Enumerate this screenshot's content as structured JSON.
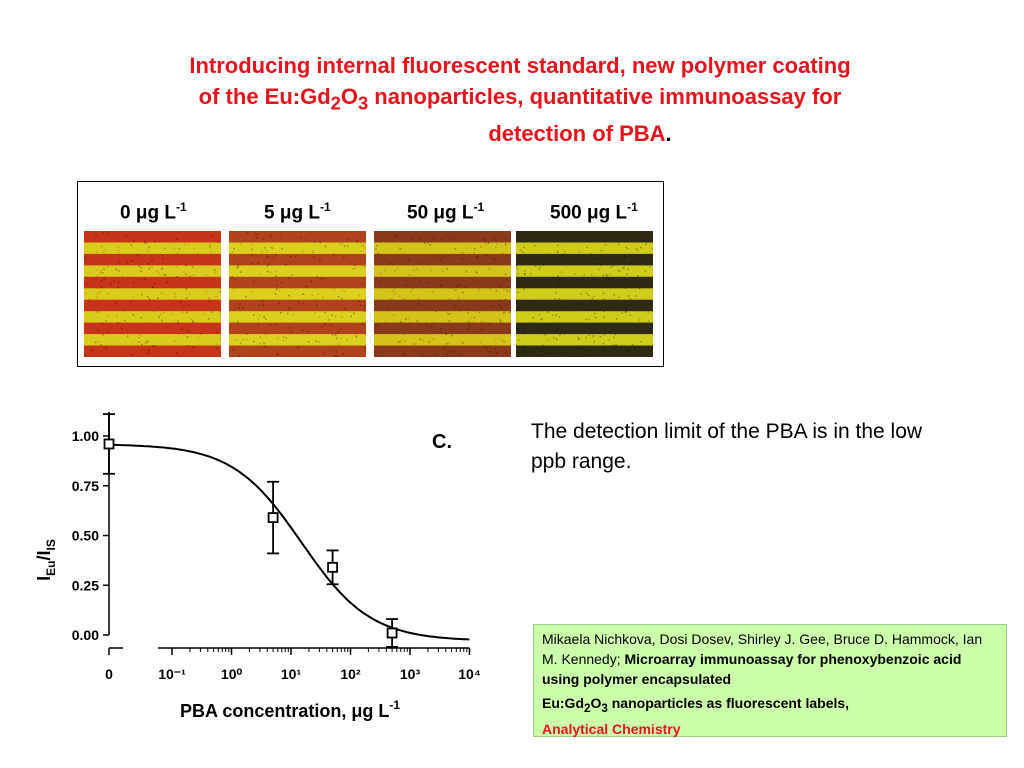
{
  "title": {
    "line1": "Introducing internal fluorescent standard, new polymer coating",
    "line2_pre": "of the Eu:Gd",
    "line2_sub1": "2",
    "line2_mid": "O",
    "line2_sub2": "3",
    "line2_post": " nanoparticles, quantitative immunoassay for",
    "line3": "detection of PBA",
    "line3_end": "."
  },
  "panels": [
    {
      "value": "0",
      "unit": "μg L",
      "exp": "-1",
      "band_color": "#c8341a",
      "bg_color": "#d9cc1c"
    },
    {
      "value": "5",
      "unit": "μg L",
      "exp": "-1",
      "band_color": "#b0421c",
      "bg_color": "#dcd01e"
    },
    {
      "value": "50",
      "unit": "μg L",
      "exp": "-1",
      "band_color": "#8a3a1a",
      "bg_color": "#d4c41a"
    },
    {
      "value": "500",
      "unit": "μg L",
      "exp": "-1",
      "band_color": "#2e2a14",
      "bg_color": "#cfcd1a"
    }
  ],
  "side_text": "The detection limit of the PBA is in the low ppb range.",
  "reference": {
    "authors": "Mikaela Nichkova, Dosi Dosev, Shirley J. Gee, Bruce D. Hammock, Ian M. Kennedy;",
    "title_part1": "Microarray immunoassay for phenoxybenzoic acid using polymer encapsulated",
    "title_part2_pre": "Eu:Gd",
    "title_part2_sub1": "2",
    "title_part2_mid": "O",
    "title_part2_sub2": "3",
    "title_part2_post": " nanoparticles as fluorescent labels,",
    "journal": "Analytical Chemistry"
  },
  "chart_data": {
    "type": "scatter",
    "panel_letter": "C.",
    "xlabel": "PBA concentration,  μg L",
    "xlabel_exp": "-1",
    "ylabel_main": "I",
    "ylabel_sub1": "Eu",
    "ylabel_sep": "/I",
    "ylabel_sub2": "IS",
    "x_scale": "log",
    "x_ticks": [
      "0",
      "10⁻¹",
      "10⁰",
      "10¹",
      "10²",
      "10³",
      "10⁴"
    ],
    "y_ticks": [
      "1.00",
      "0.75",
      "0.50",
      "0.25",
      "0.00"
    ],
    "ylim": [
      0,
      1
    ],
    "points": [
      {
        "x": 0,
        "y": 0.96,
        "err": 0.15
      },
      {
        "x": 5,
        "y": 0.59,
        "err": 0.18
      },
      {
        "x": 50,
        "y": 0.34,
        "err": 0.085
      },
      {
        "x": 500,
        "y": 0.01,
        "err": 0.07
      }
    ],
    "fit_curve": {
      "top": 0.96,
      "bottom": -0.03,
      "ic50": 15,
      "hill": 0.75
    },
    "grid": false,
    "legend": "none"
  }
}
